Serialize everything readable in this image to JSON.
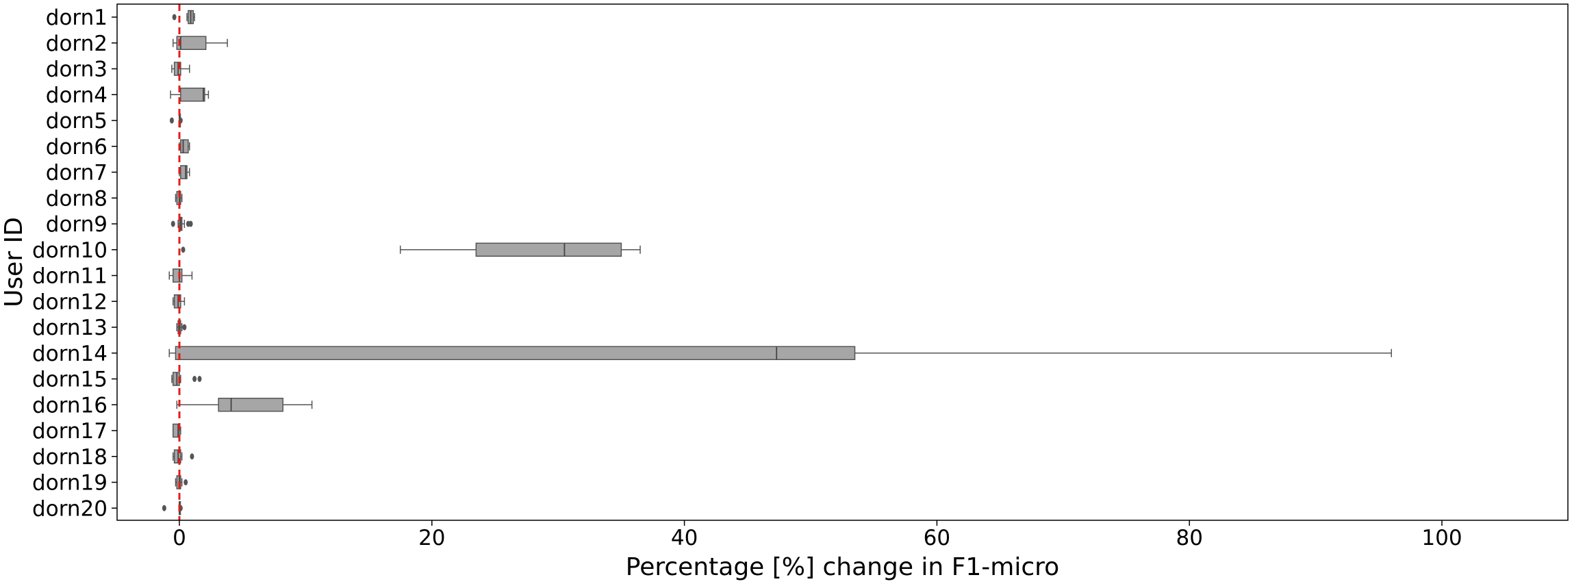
{
  "chart_data": {
    "type": "boxplot",
    "orientation": "horizontal",
    "title": "",
    "xlabel": "Percentage [%] change in F1-micro",
    "ylabel": "User ID",
    "xlim": [
      -10,
      110
    ],
    "xticks": [
      0,
      20,
      40,
      60,
      80,
      100
    ],
    "xtick_labels": [
      "0",
      "20",
      "40",
      "60",
      "80",
      "100"
    ],
    "reference_line": {
      "x": 0,
      "style": "dashed",
      "color": "#e31a1c"
    },
    "colors": {
      "box_fill": "#a6a6a6",
      "box_edge": "#555555",
      "flier": "#555555"
    },
    "grid": false,
    "legend": "none",
    "categories": [
      "dorn1",
      "dorn2",
      "dorn3",
      "dorn4",
      "dorn5",
      "dorn6",
      "dorn7",
      "dorn8",
      "dorn9",
      "dorn10",
      "dorn11",
      "dorn12",
      "dorn13",
      "dorn14",
      "dorn15",
      "dorn16",
      "dorn17",
      "dorn18",
      "dorn19",
      "dorn20"
    ],
    "boxes": [
      {
        "label": "dorn1",
        "whislo": 0.6,
        "q1": 0.7,
        "med": 0.9,
        "q3": 1.1,
        "whishi": 1.2,
        "fliers": [
          -0.4
        ]
      },
      {
        "label": "dorn2",
        "whislo": -0.5,
        "q1": -0.2,
        "med": 0.1,
        "q3": 2.1,
        "whishi": 3.8,
        "fliers": []
      },
      {
        "label": "dorn3",
        "whislo": -0.6,
        "q1": -0.4,
        "med": -0.1,
        "q3": 0.1,
        "whishi": 0.8,
        "fliers": []
      },
      {
        "label": "dorn4",
        "whislo": -0.7,
        "q1": 0.1,
        "med": 1.9,
        "q3": 2.0,
        "whishi": 2.3,
        "fliers": []
      },
      {
        "label": "dorn5",
        "whislo": 0.0,
        "q1": 0.0,
        "med": 0.0,
        "q3": 0.0,
        "whishi": 0.0,
        "fliers": [
          -0.6,
          0.1
        ]
      },
      {
        "label": "dorn6",
        "whislo": 0.0,
        "q1": 0.1,
        "med": 0.3,
        "q3": 0.7,
        "whishi": 0.8,
        "fliers": []
      },
      {
        "label": "dorn7",
        "whislo": 0.0,
        "q1": 0.1,
        "med": 0.5,
        "q3": 0.6,
        "whishi": 0.8,
        "fliers": []
      },
      {
        "label": "dorn8",
        "whislo": -0.3,
        "q1": -0.2,
        "med": 0.0,
        "q3": 0.1,
        "whishi": 0.2,
        "fliers": []
      },
      {
        "label": "dorn9",
        "whislo": -0.1,
        "q1": 0.0,
        "med": 0.1,
        "q3": 0.2,
        "whishi": 0.4,
        "fliers": [
          -0.5,
          0.7,
          0.9
        ]
      },
      {
        "label": "dorn10",
        "whislo": 17.5,
        "q1": 23.5,
        "med": 30.5,
        "q3": 35.0,
        "whishi": 36.5,
        "fliers": [
          0.3
        ]
      },
      {
        "label": "dorn11",
        "whislo": -0.8,
        "q1": -0.5,
        "med": 0.0,
        "q3": 0.2,
        "whishi": 1.0,
        "fliers": []
      },
      {
        "label": "dorn12",
        "whislo": -0.5,
        "q1": -0.4,
        "med": -0.1,
        "q3": 0.1,
        "whishi": 0.4,
        "fliers": []
      },
      {
        "label": "dorn13",
        "whislo": -0.2,
        "q1": -0.1,
        "med": 0.0,
        "q3": 0.1,
        "whishi": 0.2,
        "fliers": [
          0.4
        ]
      },
      {
        "label": "dorn14",
        "whislo": -0.8,
        "q1": -0.3,
        "med": 47.3,
        "q3": 53.5,
        "whishi": 96.0,
        "fliers": []
      },
      {
        "label": "dorn15",
        "whislo": -0.6,
        "q1": -0.5,
        "med": -0.2,
        "q3": 0.0,
        "whishi": 0.1,
        "fliers": [
          1.2,
          1.6
        ]
      },
      {
        "label": "dorn16",
        "whislo": -0.2,
        "q1": 3.1,
        "med": 4.1,
        "q3": 8.2,
        "whishi": 10.5,
        "fliers": []
      },
      {
        "label": "dorn17",
        "whislo": -0.5,
        "q1": -0.5,
        "med": -0.1,
        "q3": 0.0,
        "whishi": 0.1,
        "fliers": []
      },
      {
        "label": "dorn18",
        "whislo": -0.5,
        "q1": -0.4,
        "med": -0.1,
        "q3": 0.1,
        "whishi": 0.2,
        "fliers": [
          1.0
        ]
      },
      {
        "label": "dorn19",
        "whislo": -0.3,
        "q1": -0.2,
        "med": 0.0,
        "q3": 0.1,
        "whishi": 0.2,
        "fliers": [
          0.5
        ]
      },
      {
        "label": "dorn20",
        "whislo": 0.0,
        "q1": 0.0,
        "med": 0.0,
        "q3": 0.0,
        "whishi": 0.0,
        "fliers": [
          -1.2,
          0.1
        ]
      }
    ]
  }
}
